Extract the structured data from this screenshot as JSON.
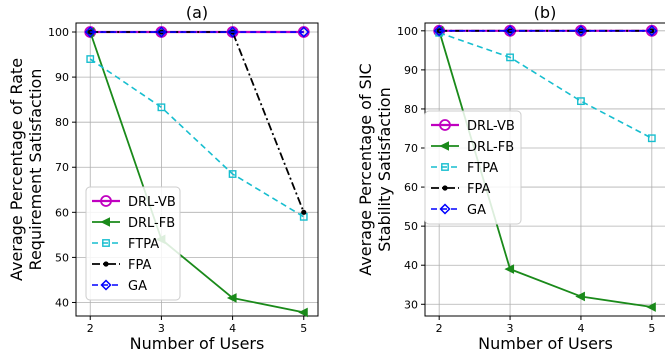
{
  "chart_data": [
    {
      "type": "line",
      "title": "(a)",
      "xlabel": "Number of Users",
      "ylabel": [
        "Average Percentage of Rate",
        "Requirement Satisfaction"
      ],
      "x": [
        2,
        3,
        4,
        5
      ],
      "xlim": [
        1.8,
        5.2
      ],
      "ylim": [
        37,
        102
      ],
      "yticks": [
        40,
        50,
        60,
        70,
        80,
        90,
        100
      ],
      "grid": true,
      "legend_position": "lower-left",
      "series": [
        {
          "name": "DRL-VB",
          "values": [
            100,
            100,
            100,
            100
          ],
          "color": "#c000c0",
          "dash": "",
          "marker": "circle-open",
          "width": 2.2
        },
        {
          "name": "DRL-FB",
          "values": [
            100,
            54,
            41,
            37.8
          ],
          "color": "#1a8a1a",
          "dash": "",
          "marker": "triangle-left",
          "width": 1.8
        },
        {
          "name": "FTPA",
          "values": [
            94,
            83.3,
            68.5,
            59
          ],
          "color": "#17becf",
          "dash": "6,4",
          "marker": "square-open",
          "width": 1.6
        },
        {
          "name": "FPA",
          "values": [
            100,
            100,
            100,
            60
          ],
          "color": "#000000",
          "dash": "8,3,2,3",
          "marker": "dot",
          "width": 1.8
        },
        {
          "name": "GA",
          "values": [
            100,
            100,
            100,
            100
          ],
          "color": "#0000ff",
          "dash": "6,4",
          "marker": "diamond-open",
          "width": 1.6
        }
      ]
    },
    {
      "type": "line",
      "title": "(b)",
      "xlabel": "Number of Users",
      "ylabel": [
        "Average Percentage of SIC",
        "Stability Satisfaction"
      ],
      "x": [
        2,
        3,
        4,
        5
      ],
      "xlim": [
        1.8,
        5.2
      ],
      "ylim": [
        27,
        102
      ],
      "yticks": [
        30,
        40,
        50,
        60,
        70,
        80,
        90,
        100
      ],
      "grid": true,
      "legend_position": "center-left",
      "series": [
        {
          "name": "DRL-VB",
          "values": [
            100,
            100,
            100,
            100
          ],
          "color": "#c000c0",
          "dash": "",
          "marker": "circle-open",
          "width": 2.2
        },
        {
          "name": "DRL-FB",
          "values": [
            100,
            39,
            32,
            29.3
          ],
          "color": "#1a8a1a",
          "dash": "",
          "marker": "triangle-left",
          "width": 1.8
        },
        {
          "name": "FTPA",
          "values": [
            99.5,
            93.2,
            82,
            72.5
          ],
          "color": "#17becf",
          "dash": "6,4",
          "marker": "square-open",
          "width": 1.6
        },
        {
          "name": "FPA",
          "values": [
            100,
            100,
            100,
            100
          ],
          "color": "#000000",
          "dash": "8,3,2,3",
          "marker": "dot",
          "width": 1.8
        },
        {
          "name": "GA",
          "values": [
            100,
            100,
            100,
            100
          ],
          "color": "#0000ff",
          "dash": "6,4",
          "marker": "diamond-open",
          "width": 1.6
        }
      ]
    }
  ]
}
